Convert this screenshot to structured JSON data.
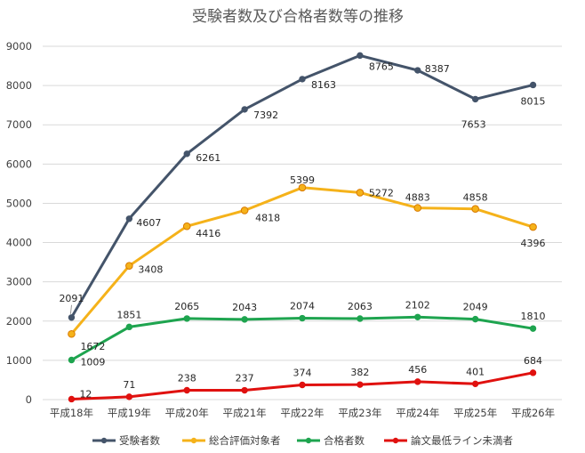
{
  "chart_data": {
    "type": "line",
    "title": "受験者数及び合格者数等の推移",
    "categories": [
      "平成18年",
      "平成19年",
      "平成20年",
      "平成21年",
      "平成22年",
      "平成23年",
      "平成24年",
      "平成25年",
      "平成26年"
    ],
    "ylim": [
      0,
      9000
    ],
    "yticks": [
      0,
      1000,
      2000,
      3000,
      4000,
      5000,
      6000,
      7000,
      8000,
      9000
    ],
    "grid": true,
    "legend": "bottom",
    "series": [
      {
        "name": "受験者数",
        "color": "#44546a",
        "values": [
          2091,
          4607,
          6261,
          7392,
          8163,
          8765,
          8387,
          7653,
          8015
        ]
      },
      {
        "name": "総合評価対象者",
        "color": "#f5b21a",
        "values": [
          1672,
          3408,
          4416,
          4818,
          5399,
          5272,
          4883,
          4858,
          4396
        ]
      },
      {
        "name": "合格者数",
        "color": "#1ea44f",
        "values": [
          1009,
          1851,
          2065,
          2043,
          2074,
          2063,
          2102,
          2049,
          1810
        ]
      },
      {
        "name": "論文最低ライン未満者",
        "color": "#e0110f",
        "values": [
          12,
          71,
          238,
          237,
          374,
          382,
          456,
          401,
          684
        ]
      }
    ]
  }
}
